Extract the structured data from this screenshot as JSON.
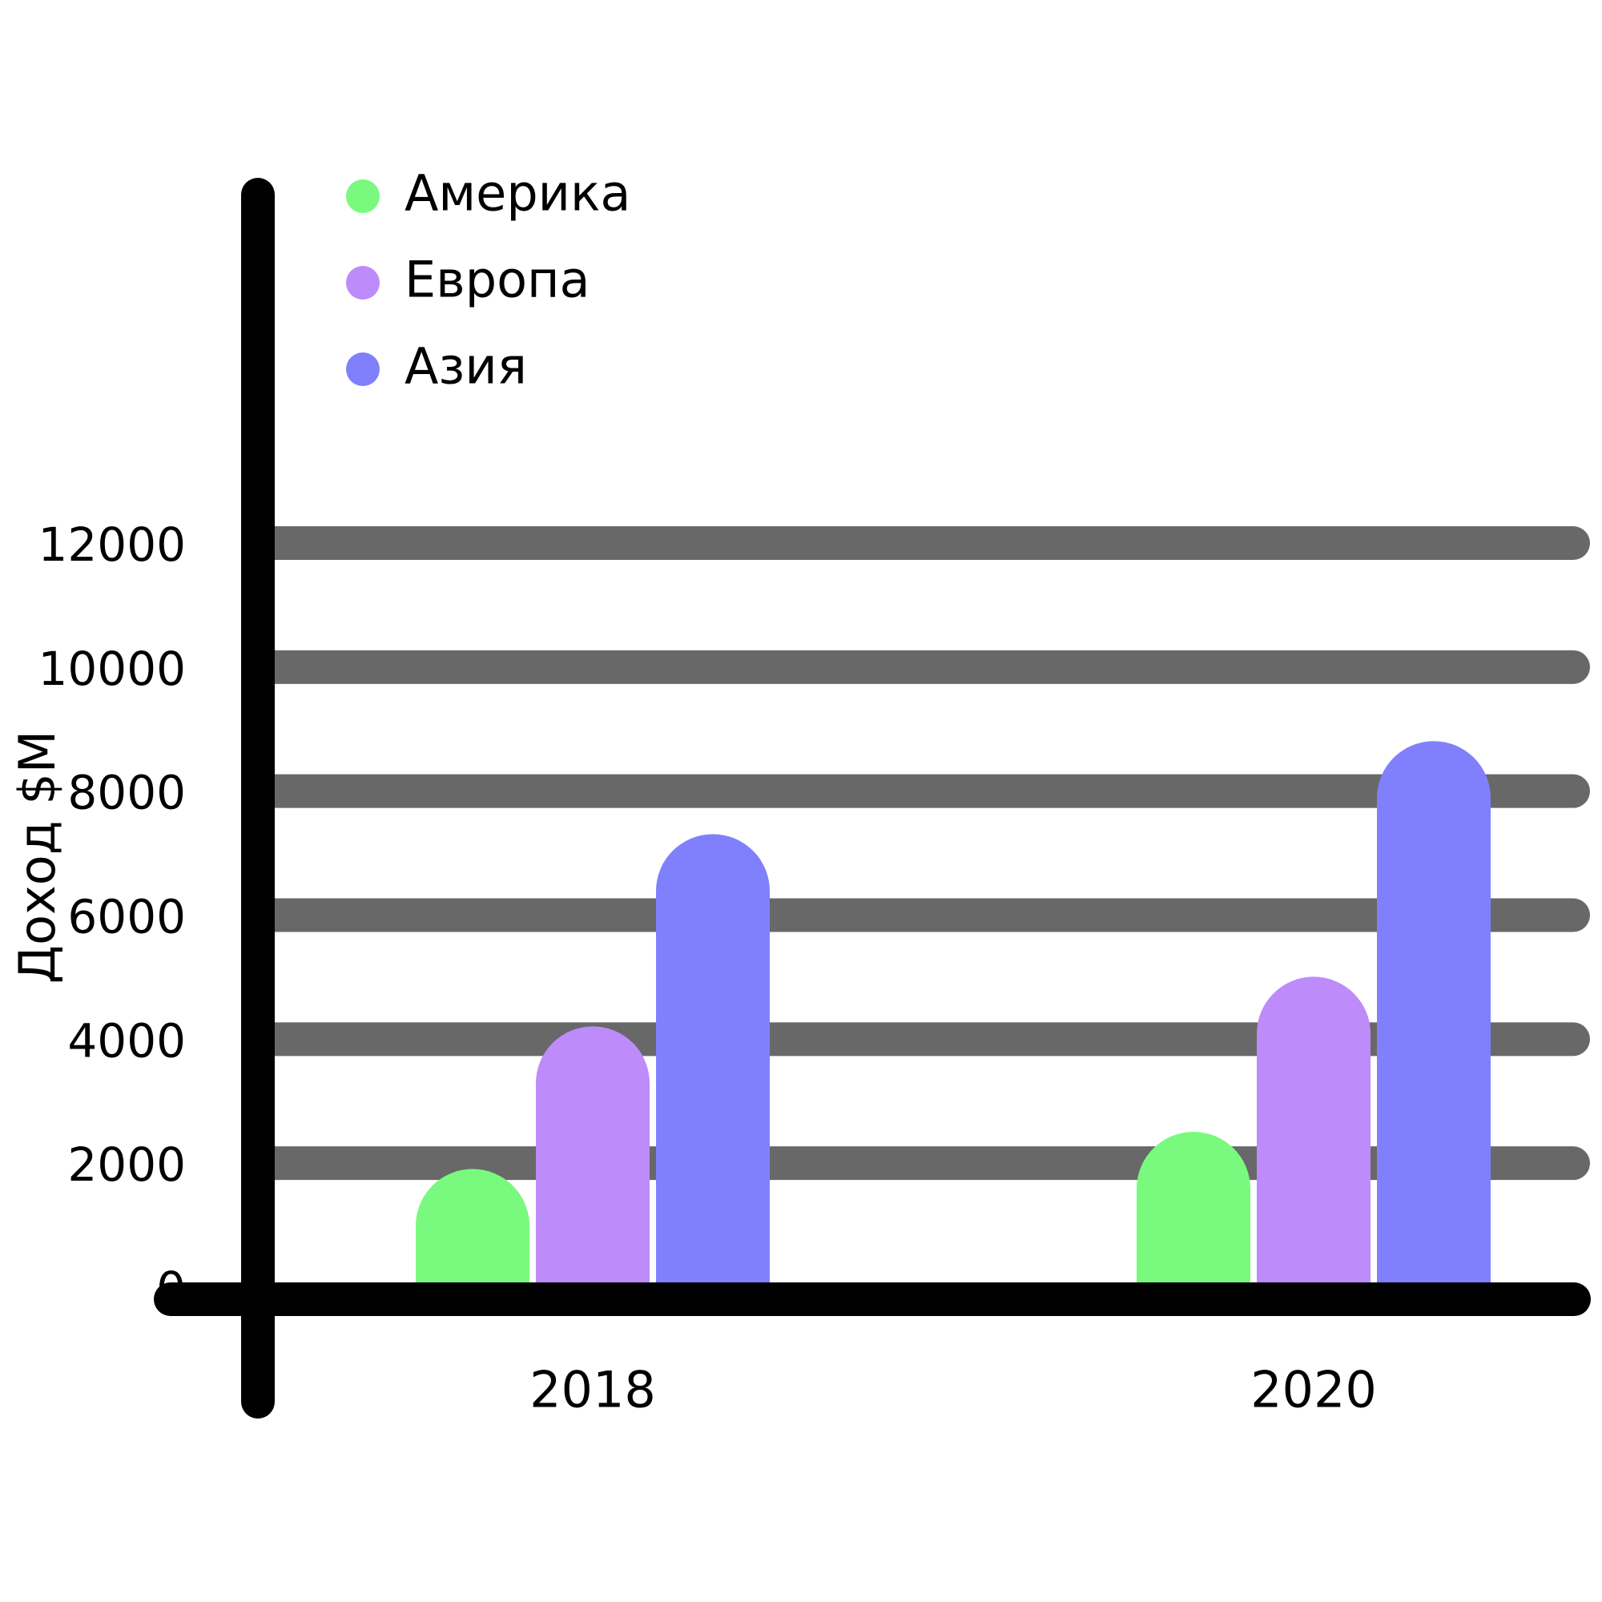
{
  "chart_data": {
    "type": "bar",
    "title": "",
    "xlabel": "",
    "ylabel": "Доход $M",
    "categories": [
      "2018",
      "2020"
    ],
    "series": [
      {
        "name": "Америка",
        "color": "#79fa7e",
        "values": [
          2100,
          2700
        ]
      },
      {
        "name": "Европа",
        "color": "#be8bfb",
        "values": [
          4400,
          5200
        ]
      },
      {
        "name": "Азия",
        "color": "#8080fc",
        "values": [
          7500,
          9000
        ]
      }
    ],
    "ylim": [
      0,
      12000
    ],
    "yticks": [
      "0",
      "2000",
      "4000",
      "6000",
      "8000",
      "10000",
      "12000"
    ],
    "grid": true,
    "grid_color": "#686868",
    "axis_color": "#000000",
    "legend_position": "top-left"
  }
}
